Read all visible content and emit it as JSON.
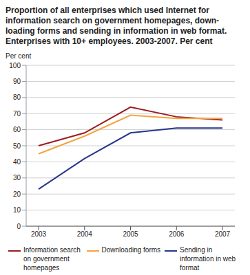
{
  "chart_data": {
    "type": "line",
    "title": "Proportion of all enterprises which used Internet for information search on government homepages, down-loading forms and sending in information in web format. Enterprises with 10+ employees. 2003-2007. Per cent",
    "y_label": "Per cent",
    "categories": [
      "2003",
      "2004",
      "2005",
      "2006",
      "2007"
    ],
    "series": [
      {
        "name": "Information search on government homepages",
        "color": "#9b1b22",
        "values": [
          50,
          58,
          74,
          68,
          66
        ]
      },
      {
        "name": "Downloading forms",
        "color": "#f4a340",
        "values": [
          45,
          56,
          69,
          67,
          67
        ]
      },
      {
        "name": "Sending in information in web format",
        "color": "#27358a",
        "values": [
          23,
          42,
          58,
          61,
          61
        ]
      }
    ],
    "ylim": [
      0,
      100
    ],
    "yticks": [
      0,
      10,
      20,
      30,
      40,
      50,
      60,
      70,
      80,
      90,
      100
    ],
    "grid": true,
    "legend": "bottom"
  }
}
